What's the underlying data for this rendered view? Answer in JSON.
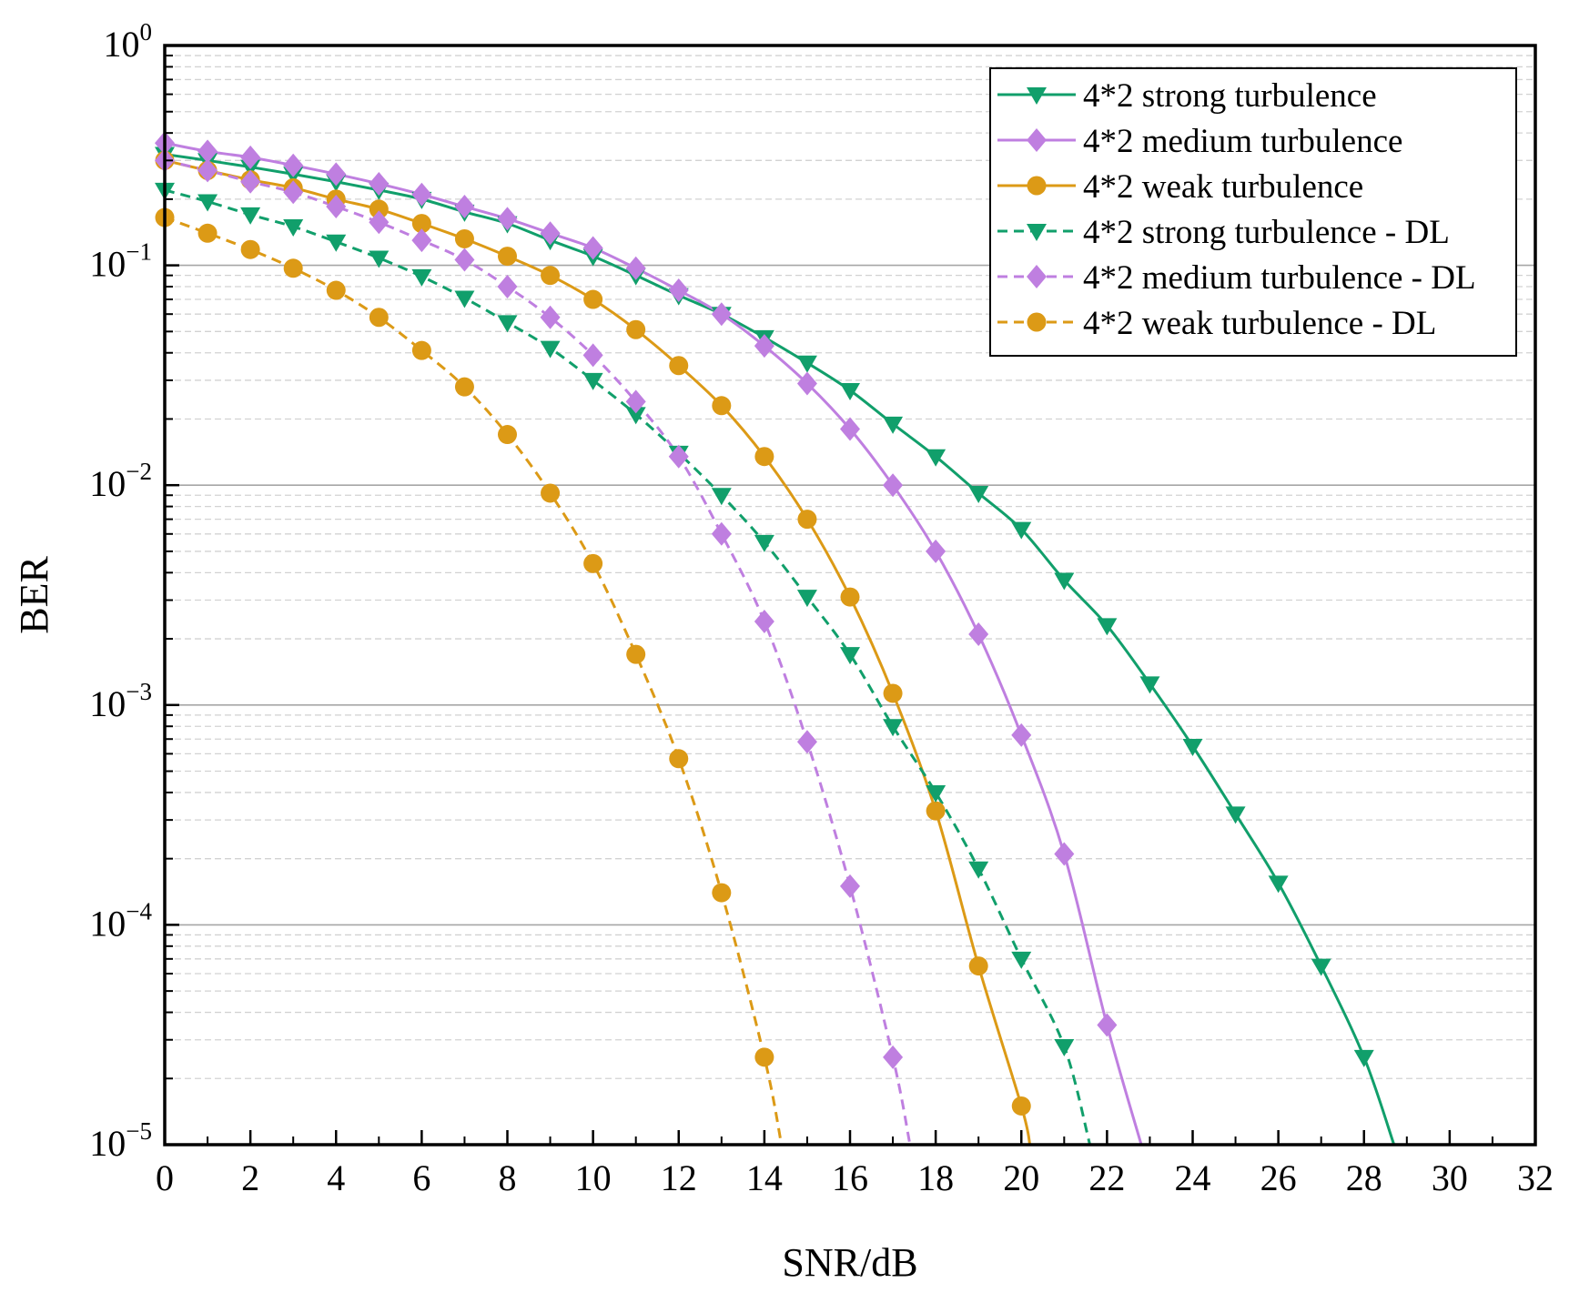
{
  "chart_data": {
    "type": "line",
    "title": "",
    "xlabel": "SNR/dB",
    "ylabel": "BER",
    "xlim": [
      0,
      32
    ],
    "ylim": [
      1e-05,
      1
    ],
    "yscale": "log",
    "grid": true,
    "legend_position": "top-right",
    "x_ticks": [
      "0",
      "2",
      "4",
      "6",
      "8",
      "10",
      "12",
      "14",
      "16",
      "18",
      "20",
      "22",
      "24",
      "26",
      "28",
      "30",
      "32"
    ],
    "y_ticks": [
      {
        "base": "10",
        "exp": "0"
      },
      {
        "base": "10",
        "exp": "−1"
      },
      {
        "base": "10",
        "exp": "−2"
      },
      {
        "base": "10",
        "exp": "−3"
      },
      {
        "base": "10",
        "exp": "−4"
      },
      {
        "base": "10",
        "exp": "−5"
      }
    ],
    "series": [
      {
        "name": "4*2 strong turbulence",
        "color": "#119f6b",
        "line_style": "solid",
        "marker": "triangle-down",
        "x": [
          0,
          1,
          2,
          3,
          4,
          5,
          6,
          7,
          8,
          9,
          10,
          11,
          12,
          13,
          14,
          15,
          16,
          17,
          18,
          19,
          20,
          21,
          22,
          23,
          24,
          25,
          26,
          27,
          28,
          28.7
        ],
        "y": [
          0.32,
          0.3,
          0.28,
          0.26,
          0.24,
          0.22,
          0.2,
          0.175,
          0.155,
          0.13,
          0.11,
          0.09,
          0.073,
          0.06,
          0.047,
          0.036,
          0.027,
          0.019,
          0.0135,
          0.0092,
          0.0063,
          0.0037,
          0.0023,
          0.00125,
          0.00065,
          0.00032,
          0.000155,
          6.5e-05,
          2.5e-05,
          1e-05
        ]
      },
      {
        "name": "4*2 medium turbulence",
        "color": "#bf7fe0",
        "line_style": "solid",
        "marker": "diamond",
        "x": [
          0,
          1,
          2,
          3,
          4,
          5,
          6,
          7,
          8,
          9,
          10,
          11,
          12,
          13,
          14,
          15,
          16,
          17,
          18,
          19,
          20,
          21,
          22,
          22.8
        ],
        "y": [
          0.36,
          0.33,
          0.31,
          0.285,
          0.26,
          0.235,
          0.21,
          0.185,
          0.163,
          0.14,
          0.12,
          0.097,
          0.077,
          0.06,
          0.043,
          0.029,
          0.018,
          0.01,
          0.005,
          0.0021,
          0.00073,
          0.00021,
          3.5e-05,
          1e-05
        ]
      },
      {
        "name": "4*2 weak turbulence",
        "color": "#dc9a16",
        "line_style": "solid",
        "marker": "circle",
        "x": [
          0,
          1,
          2,
          3,
          4,
          5,
          6,
          7,
          8,
          9,
          10,
          11,
          12,
          13,
          14,
          15,
          16,
          17,
          18,
          19,
          20,
          20.2
        ],
        "y": [
          0.3,
          0.27,
          0.245,
          0.225,
          0.2,
          0.18,
          0.155,
          0.132,
          0.11,
          0.09,
          0.07,
          0.051,
          0.035,
          0.023,
          0.0135,
          0.007,
          0.0031,
          0.00113,
          0.00033,
          6.5e-05,
          1.5e-05,
          1e-05
        ]
      },
      {
        "name": "4*2 strong turbulence - DL",
        "color": "#119f6b",
        "line_style": "dashed",
        "marker": "triangle-down",
        "x": [
          0,
          1,
          2,
          3,
          4,
          5,
          6,
          7,
          8,
          9,
          10,
          11,
          12,
          13,
          14,
          15,
          16,
          17,
          18,
          19,
          20,
          21,
          21.6
        ],
        "y": [
          0.22,
          0.195,
          0.17,
          0.15,
          0.128,
          0.108,
          0.089,
          0.071,
          0.055,
          0.042,
          0.03,
          0.021,
          0.014,
          0.009,
          0.0055,
          0.0031,
          0.0017,
          0.0008,
          0.0004,
          0.00018,
          7e-05,
          2.8e-05,
          1e-05
        ]
      },
      {
        "name": "4*2 medium turbulence - DL",
        "color": "#bf7fe0",
        "line_style": "dashed",
        "marker": "diamond",
        "x": [
          0,
          1,
          2,
          3,
          4,
          5,
          6,
          7,
          8,
          9,
          10,
          11,
          12,
          13,
          14,
          15,
          16,
          17,
          17.4
        ],
        "y": [
          0.3,
          0.27,
          0.24,
          0.215,
          0.185,
          0.157,
          0.13,
          0.106,
          0.08,
          0.058,
          0.039,
          0.024,
          0.0135,
          0.006,
          0.0024,
          0.00068,
          0.00015,
          2.5e-05,
          1e-05
        ]
      },
      {
        "name": "4*2 weak turbulence - DL",
        "color": "#dc9a16",
        "line_style": "dashed",
        "marker": "circle",
        "x": [
          0,
          1,
          2,
          3,
          4,
          5,
          6,
          7,
          8,
          9,
          10,
          11,
          12,
          13,
          14,
          14.4
        ],
        "y": [
          0.165,
          0.14,
          0.118,
          0.097,
          0.077,
          0.058,
          0.041,
          0.028,
          0.017,
          0.0092,
          0.0044,
          0.0017,
          0.00057,
          0.00014,
          2.5e-05,
          1e-05
        ]
      }
    ]
  }
}
